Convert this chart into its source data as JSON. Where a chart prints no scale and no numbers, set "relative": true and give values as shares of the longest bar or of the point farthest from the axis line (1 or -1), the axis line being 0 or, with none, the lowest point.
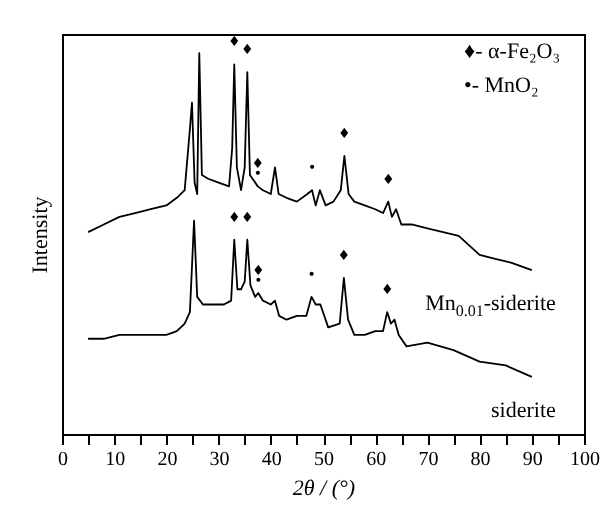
{
  "chart_data": {
    "type": "line",
    "relative": true,
    "xlabel": "2θ / (°)",
    "ylabel": "Intensity",
    "xlim": [
      0,
      100
    ],
    "xticks": [
      0,
      {
        "value": 5,
        "label": null
      },
      10,
      {
        "value": 15,
        "label": null
      },
      20,
      {
        "value": 25,
        "label": null
      },
      30,
      {
        "value": 35,
        "label": null
      },
      40,
      {
        "value": 45,
        "label": null
      },
      50,
      {
        "value": 55,
        "label": null
      },
      60,
      {
        "value": 65,
        "label": null
      },
      70,
      {
        "value": 75,
        "label": null
      },
      80,
      {
        "value": 85,
        "label": null
      },
      90,
      {
        "value": 95,
        "label": null
      },
      100
    ],
    "grid": false,
    "series": [
      {
        "name": "Mn$_{0.01}$-siderite",
        "color": "#000000",
        "x": [
          5,
          8,
          11,
          14,
          17,
          20,
          22,
          23.5,
          24.5,
          24.9,
          25.4,
          25.9,
          26.3,
          26.8,
          28,
          30,
          32,
          32.6,
          33.0,
          33.5,
          34.3,
          35.0,
          35.5,
          36.0,
          37.0,
          37.5,
          38.5,
          40.0,
          40.8,
          41.5,
          43,
          45,
          47.0,
          47.9,
          48.6,
          49.4,
          50.5,
          52,
          53.4,
          54.1,
          54.9,
          56,
          58,
          60,
          61.5,
          62.5,
          63.2,
          64,
          65,
          67,
          70,
          73,
          76,
          80,
          83,
          86,
          90
        ],
        "values": [
          0.53,
          0.55,
          0.57,
          0.58,
          0.59,
          0.6,
          0.62,
          0.64,
          0.8,
          0.87,
          0.66,
          0.63,
          1.0,
          0.68,
          0.67,
          0.66,
          0.65,
          0.75,
          0.97,
          0.7,
          0.64,
          0.7,
          0.95,
          0.68,
          0.66,
          0.65,
          0.64,
          0.63,
          0.7,
          0.63,
          0.62,
          0.61,
          0.63,
          0.64,
          0.6,
          0.64,
          0.6,
          0.61,
          0.64,
          0.73,
          0.63,
          0.61,
          0.6,
          0.59,
          0.58,
          0.61,
          0.57,
          0.59,
          0.55,
          0.55,
          0.54,
          0.53,
          0.52,
          0.47,
          0.46,
          0.45,
          0.43
        ]
      },
      {
        "name": "siderite",
        "color": "#000000",
        "x": [
          5,
          8,
          11,
          14,
          17,
          20,
          22,
          23.5,
          24.5,
          25.3,
          25.9,
          27,
          29,
          31,
          32.4,
          33.0,
          33.6,
          34.3,
          35.0,
          35.5,
          36.1,
          37.0,
          37.6,
          38.5,
          40.0,
          40.8,
          41.6,
          43,
          45,
          46.8,
          47.8,
          48.6,
          49.5,
          51,
          53.2,
          54.0,
          54.8,
          56,
          58,
          60,
          61.5,
          62.3,
          63.0,
          63.7,
          64.5,
          66,
          70,
          75,
          80,
          85,
          90
        ],
        "values": [
          0.25,
          0.25,
          0.26,
          0.26,
          0.26,
          0.26,
          0.27,
          0.29,
          0.32,
          0.56,
          0.36,
          0.34,
          0.34,
          0.34,
          0.35,
          0.51,
          0.38,
          0.38,
          0.4,
          0.51,
          0.39,
          0.36,
          0.37,
          0.35,
          0.34,
          0.35,
          0.31,
          0.3,
          0.31,
          0.31,
          0.36,
          0.34,
          0.34,
          0.28,
          0.29,
          0.41,
          0.3,
          0.26,
          0.26,
          0.27,
          0.27,
          0.32,
          0.29,
          0.3,
          0.26,
          0.23,
          0.24,
          0.22,
          0.19,
          0.18,
          0.15
        ]
      }
    ],
    "annotations": [
      "♦- α-Fe₂O₃",
      "•- MnO₂",
      {
        "text": "♦",
        "x": 33.0,
        "y": 0.97
      },
      {
        "text": "♦",
        "x": 35.5,
        "y": 0.95
      },
      {
        "text": "♦",
        "x": 37.5,
        "y": 0.65
      },
      {
        "text": "•",
        "x": 37.5,
        "y": 0.65
      },
      {
        "text": "•",
        "x": 47.9,
        "y": 0.64
      },
      {
        "text": "♦",
        "x": 54.1,
        "y": 0.73
      },
      {
        "text": "♦",
        "x": 62.5,
        "y": 0.61
      },
      {
        "text": "♦",
        "x": 33.0,
        "y": 0.51
      },
      {
        "text": "♦",
        "x": 35.5,
        "y": 0.51
      },
      {
        "text": "♦",
        "x": 37.6,
        "y": 0.37
      },
      {
        "text": "•",
        "x": 37.6,
        "y": 0.37
      },
      {
        "text": "•",
        "x": 47.8,
        "y": 0.36
      },
      {
        "text": "♦",
        "x": 54.0,
        "y": 0.41
      },
      {
        "text": "♦",
        "x": 62.3,
        "y": 0.32
      }
    ]
  }
}
